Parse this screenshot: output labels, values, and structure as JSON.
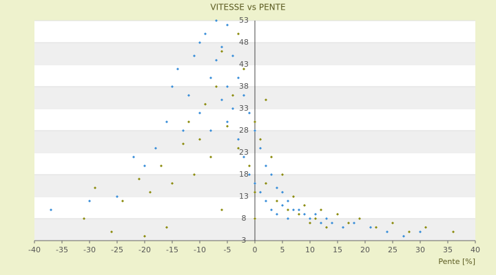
{
  "chart_data": {
    "type": "scatter",
    "title": "VITESSE vs PENTE",
    "x_label": "Pente [%]",
    "xlim": [
      -40,
      40
    ],
    "xticks": [
      -40,
      -35,
      -30,
      -25,
      -20,
      -15,
      -10,
      -5,
      0,
      5,
      10,
      15,
      20,
      25,
      30,
      35,
      40
    ],
    "ylim": [
      3,
      53
    ],
    "yticks": [
      3,
      8,
      13,
      18,
      23,
      28,
      33,
      38,
      43,
      48,
      53
    ],
    "banded_grid": true,
    "series": [
      {
        "color": "#3b8fd9",
        "x": [
          -37,
          -30,
          -25,
          -22,
          -20,
          -18,
          -16,
          -15,
          -14,
          -13,
          -12,
          -11,
          -10,
          -10,
          -9,
          -8,
          -8,
          -7,
          -7,
          -6,
          -6,
          -5,
          -5,
          -5,
          -4,
          -4,
          -3,
          -3,
          -2,
          -2,
          -1,
          -1,
          0,
          0,
          1,
          1,
          2,
          2,
          3,
          3,
          4,
          4,
          5,
          5,
          6,
          6,
          7,
          8,
          9,
          10,
          11,
          12,
          13,
          14,
          16,
          18,
          21,
          24,
          27,
          30
        ],
        "values": [
          10,
          12,
          13,
          22,
          20,
          24,
          30,
          38,
          42,
          28,
          36,
          45,
          48,
          32,
          50,
          40,
          28,
          53,
          44,
          35,
          47,
          52,
          38,
          30,
          45,
          33,
          40,
          26,
          36,
          22,
          32,
          18,
          28,
          16,
          24,
          14,
          20,
          12,
          18,
          10,
          15,
          9,
          14,
          11,
          12,
          8,
          10,
          10,
          9,
          8,
          9,
          7,
          8,
          7,
          6,
          7,
          6,
          5,
          4,
          5
        ]
      },
      {
        "color": "#8c8c10",
        "x": [
          -31,
          -29,
          -26,
          -24,
          -21,
          -19,
          -17,
          -15,
          -13,
          -12,
          -11,
          -10,
          -9,
          -8,
          -7,
          -6,
          -5,
          -4,
          -3,
          -2,
          -1,
          0,
          0,
          0,
          1,
          2,
          3,
          4,
          5,
          6,
          7,
          8,
          9,
          10,
          11,
          12,
          13,
          15,
          17,
          19,
          22,
          25,
          28,
          31,
          36,
          -20,
          -16,
          -6,
          -3,
          2
        ],
        "values": [
          8,
          15,
          5,
          12,
          17,
          14,
          20,
          16,
          25,
          30,
          18,
          26,
          34,
          22,
          38,
          46,
          29,
          36,
          24,
          42,
          20,
          30,
          14,
          8,
          26,
          16,
          22,
          12,
          18,
          10,
          13,
          9,
          11,
          7,
          8,
          10,
          6,
          9,
          7,
          8,
          6,
          7,
          5,
          6,
          5,
          4,
          6,
          10,
          50,
          35
        ]
      }
    ]
  }
}
